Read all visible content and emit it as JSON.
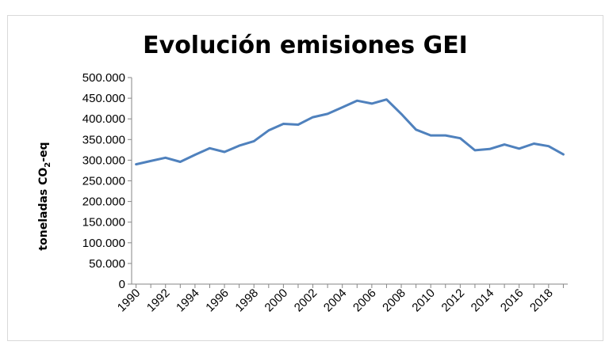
{
  "chart_data": {
    "type": "line",
    "title": "Evolución emisiones GEI",
    "ylabel_main": "toneladas CO",
    "ylabel_sub": "2",
    "ylabel_suffix": "-eq",
    "xlabel": "",
    "ylim": [
      0,
      500000
    ],
    "yticks": [
      {
        "value": 0,
        "label": "0"
      },
      {
        "value": 50000,
        "label": "50.000"
      },
      {
        "value": 100000,
        "label": "100.000"
      },
      {
        "value": 150000,
        "label": "150.000"
      },
      {
        "value": 200000,
        "label": "200.000"
      },
      {
        "value": 250000,
        "label": "250.000"
      },
      {
        "value": 300000,
        "label": "300.000"
      },
      {
        "value": 350000,
        "label": "350.000"
      },
      {
        "value": 400000,
        "label": "400.000"
      },
      {
        "value": 450000,
        "label": "450.000"
      },
      {
        "value": 500000,
        "label": "500.000"
      }
    ],
    "x": [
      1990,
      1991,
      1992,
      1993,
      1994,
      1995,
      1996,
      1997,
      1998,
      1999,
      2000,
      2001,
      2002,
      2003,
      2004,
      2005,
      2006,
      2007,
      2008,
      2009,
      2010,
      2011,
      2012,
      2013,
      2014,
      2015,
      2016,
      2017,
      2018,
      2019
    ],
    "xtick_labels": [
      "1990",
      "1992",
      "1994",
      "1996",
      "1998",
      "2000",
      "2002",
      "2004",
      "2006",
      "2008",
      "2010",
      "2012",
      "2014",
      "2016",
      "2018"
    ],
    "series": [
      {
        "color": "#4f81bd",
        "values": [
          290000,
          298000,
          306000,
          296000,
          313000,
          329000,
          320000,
          335000,
          346000,
          372000,
          388000,
          386000,
          404000,
          412000,
          428000,
          444000,
          437000,
          447000,
          412000,
          374000,
          360000,
          360000,
          353000,
          324000,
          327000,
          338000,
          328000,
          340000,
          334000,
          314000
        ]
      }
    ],
    "grid": false,
    "legend": "none"
  }
}
